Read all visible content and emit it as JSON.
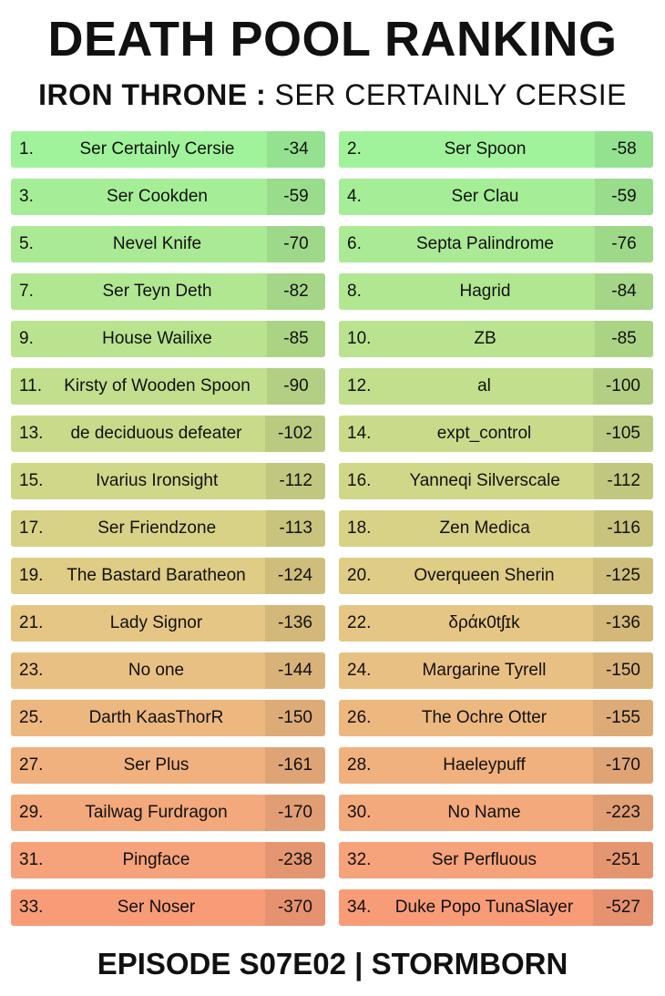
{
  "title": "DEATH POOL RANKING",
  "subtitle": {
    "bold": "IRON THRONE :",
    "rest": "SER CERTAINLY CERSIE"
  },
  "footer": "EPISODE S07E02 | STORMBORN",
  "entries": [
    {
      "rank": "1.",
      "name": "Ser Certainly Cersie",
      "score": "-34",
      "color": "#a0f39a"
    },
    {
      "rank": "2.",
      "name": "Ser Spoon",
      "score": "-58",
      "color": "#a0f39a"
    },
    {
      "rank": "3.",
      "name": "Ser Cookden",
      "score": "-59",
      "color": "#a5ee97"
    },
    {
      "rank": "4.",
      "name": "Ser Clau",
      "score": "-59",
      "color": "#a5ee97"
    },
    {
      "rank": "5.",
      "name": "Nevel Knife",
      "score": "-70",
      "color": "#abea94"
    },
    {
      "rank": "6.",
      "name": "Septa Palindrome",
      "score": "-76",
      "color": "#abea94"
    },
    {
      "rank": "7.",
      "name": "Ser Teyn Deth",
      "score": "-82",
      "color": "#b2e792"
    },
    {
      "rank": "8.",
      "name": "Hagrid",
      "score": "-84",
      "color": "#b2e792"
    },
    {
      "rank": "9.",
      "name": "House Wailixe",
      "score": "-85",
      "color": "#b9e38f"
    },
    {
      "rank": "10.",
      "name": "ZB",
      "score": "-85",
      "color": "#b9e38f"
    },
    {
      "rank": "11.",
      "name": "Kirsty of Wooden Spoon",
      "score": "-90",
      "color": "#c1df8d"
    },
    {
      "rank": "12.",
      "name": "al",
      "score": "-100",
      "color": "#c1df8d"
    },
    {
      "rank": "13.",
      "name": "de deciduous defeater",
      "score": "-102",
      "color": "#c9db8b"
    },
    {
      "rank": "14.",
      "name": "expt_control",
      "score": "-105",
      "color": "#c9db8b"
    },
    {
      "rank": "15.",
      "name": "Ivarius Ironsight",
      "score": "-112",
      "color": "#d1d789"
    },
    {
      "rank": "16.",
      "name": "Yanneqi Silverscale",
      "score": "-112",
      "color": "#d1d789"
    },
    {
      "rank": "17.",
      "name": "Ser Friendzone",
      "score": "-113",
      "color": "#d8d287"
    },
    {
      "rank": "18.",
      "name": "Zen Medica",
      "score": "-116",
      "color": "#d8d287"
    },
    {
      "rank": "19.",
      "name": "The Bastard Baratheon",
      "score": "-124",
      "color": "#dfcc85"
    },
    {
      "rank": "20.",
      "name": "Overqueen Sherin",
      "score": "-125",
      "color": "#dfcc85"
    },
    {
      "rank": "21.",
      "name": "Lady Signor",
      "score": "-136",
      "color": "#e5c684"
    },
    {
      "rank": "22.",
      "name": "δράκ0tʃɪk",
      "score": "-136",
      "color": "#e5c684"
    },
    {
      "rank": "23.",
      "name": "No one",
      "score": "-144",
      "color": "#e9c083"
    },
    {
      "rank": "24.",
      "name": "Margarine Tyrell",
      "score": "-150",
      "color": "#e9c083"
    },
    {
      "rank": "25.",
      "name": "Darth KaasThorR",
      "score": "-150",
      "color": "#edb880"
    },
    {
      "rank": "26.",
      "name": "The Ochre Otter",
      "score": "-155",
      "color": "#edb880"
    },
    {
      "rank": "27.",
      "name": "Ser Plus",
      "score": "-161",
      "color": "#f0b17e"
    },
    {
      "rank": "28.",
      "name": "Haeleypuff",
      "score": "-170",
      "color": "#f0b17e"
    },
    {
      "rank": "29.",
      "name": "Tailwag Furdragon",
      "score": "-170",
      "color": "#f3a97c"
    },
    {
      "rank": "30.",
      "name": "No Name",
      "score": "-223",
      "color": "#f3a97c"
    },
    {
      "rank": "31.",
      "name": "Pingface",
      "score": "-238",
      "color": "#f6a27a"
    },
    {
      "rank": "32.",
      "name": "Ser Perfluous",
      "score": "-251",
      "color": "#f6a27a"
    },
    {
      "rank": "33.",
      "name": "Ser Noser",
      "score": "-370",
      "color": "#f89c78"
    },
    {
      "rank": "34.",
      "name": "Duke Popo TunaSlayer",
      "score": "-527",
      "color": "#f89c78"
    }
  ]
}
